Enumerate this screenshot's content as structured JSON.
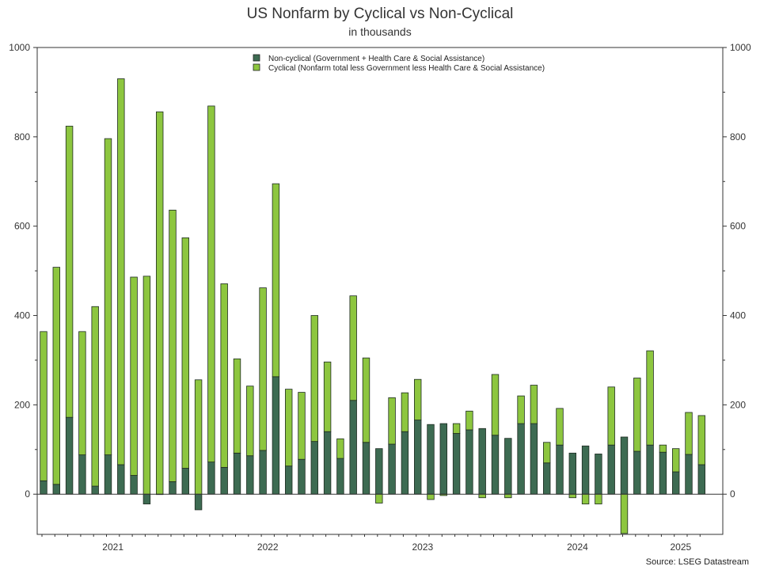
{
  "chart_data": {
    "type": "bar",
    "stacked": true,
    "title": "US Nonfarm by Cyclical vs Non-Cyclical",
    "subtitle": "in thousands",
    "source": "Source: LSEG Datastream",
    "ylim": [
      -90,
      1000
    ],
    "yticks": [
      0,
      200,
      400,
      600,
      800,
      1000
    ],
    "dual_y_axis": true,
    "grid": false,
    "legend_position": "top-center",
    "x_labels": [
      {
        "label": "2021",
        "index": 5.5
      },
      {
        "label": "2022",
        "index": 17.5
      },
      {
        "label": "2023",
        "index": 29.5
      },
      {
        "label": "2024",
        "index": 41.5
      },
      {
        "label": "2025",
        "index": 49.5
      }
    ],
    "series": [
      {
        "name": "Non-cyclical (Government + Health Care & Social Assistance)",
        "color": "#3d6b52",
        "values": [
          30,
          22,
          172,
          88,
          18,
          88,
          66,
          42,
          -22,
          0,
          28,
          58,
          -35,
          72,
          60,
          92,
          86,
          98,
          263,
          63,
          78,
          118,
          140,
          80,
          210,
          116,
          102,
          112,
          140,
          166,
          156,
          158,
          136,
          144,
          147,
          132,
          125,
          158,
          158,
          70,
          110,
          92,
          108,
          90,
          110,
          128,
          96,
          110,
          94,
          50,
          89,
          66
        ]
      },
      {
        "name": "Cyclical (Nonfarm total less Government less Health Care & Social Assistance)",
        "color": "#8dc63f",
        "values": [
          334,
          486,
          652,
          276,
          402,
          708,
          864,
          444,
          488,
          856,
          608,
          516,
          256,
          797,
          411,
          211,
          156,
          364,
          432,
          172,
          150,
          282,
          156,
          44,
          234,
          189,
          -20,
          104,
          87,
          91,
          -12,
          -3,
          22,
          42,
          -8,
          136,
          -8,
          62,
          86,
          46,
          82,
          -8,
          -22,
          -22,
          130,
          -88,
          164,
          211,
          16,
          52,
          94,
          110
        ]
      }
    ]
  }
}
